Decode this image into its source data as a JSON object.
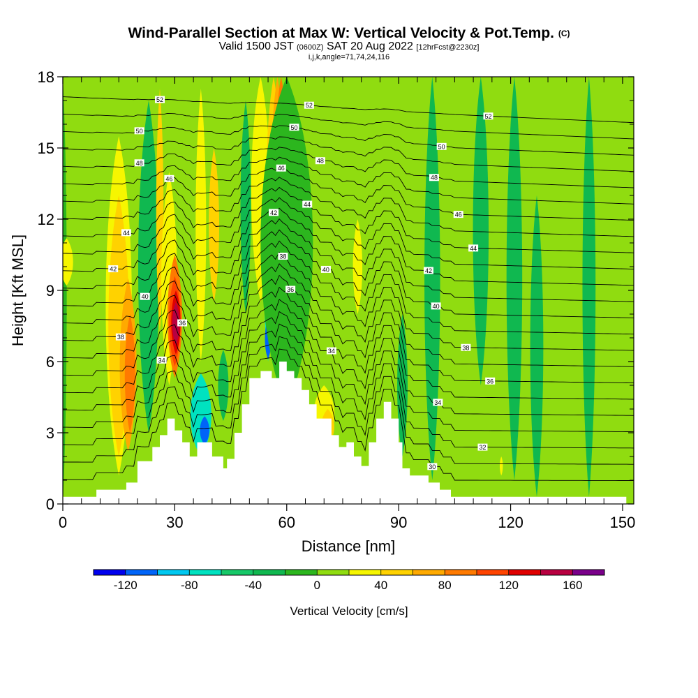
{
  "header": {
    "title": "Wind-Parallel Section at Max W: Vertical Velocity & Pot.Temp.",
    "title_mark": "(C)",
    "valid_prefix": "Valid 1500 JST",
    "valid_utc": "(0600Z)",
    "valid_date": "SAT 20 Aug 2022",
    "forecast_info": "[12hrFcst@2230z]",
    "params": "i,j,k,angle=71,74,24,116"
  },
  "chart_data": {
    "type": "heatmap",
    "title": "Wind-Parallel Section at Max W: Vertical Velocity & Pot.Temp.",
    "xlabel": "Distance [nm]",
    "ylabel": "Height [Kft MSL]",
    "xlim": [
      0,
      153
    ],
    "ylim": [
      0,
      18
    ],
    "x_ticks": [
      0,
      30,
      60,
      90,
      120,
      150
    ],
    "y_ticks": [
      0,
      3,
      6,
      9,
      12,
      15,
      18
    ],
    "colorbar": {
      "label": "Vertical Velocity [cm/s]",
      "boundaries": [
        -140,
        -120,
        -100,
        -80,
        -60,
        -40,
        -20,
        0,
        20,
        40,
        60,
        80,
        100,
        120,
        140,
        160,
        180
      ],
      "colors": [
        "#0000ee",
        "#0064f8",
        "#00c8f0",
        "#00e2c0",
        "#16c868",
        "#10b850",
        "#2cb61e",
        "#90dc10",
        "#f6f600",
        "#ffd200",
        "#ffaa00",
        "#ff7a00",
        "#ff4400",
        "#e00000",
        "#b80040",
        "#7a008a"
      ],
      "tick_labels": [
        -120,
        -80,
        -40,
        0,
        40,
        80,
        120,
        160
      ]
    },
    "vertical_velocity_columns": [
      {
        "x": 0,
        "w": 15,
        "bottom": 0,
        "top": 18,
        "level": 6
      },
      {
        "x": 1,
        "w": 25,
        "bottom": 9.2,
        "top": 11.2,
        "level": 8
      },
      {
        "x": 15,
        "w": 50,
        "bottom": 1.2,
        "top": 15.5,
        "level": 8
      },
      {
        "x": 15,
        "w": 40,
        "bottom": 2,
        "top": 13,
        "level": 9
      },
      {
        "x": 17.5,
        "w": 32,
        "bottom": 2.2,
        "top": 9.5,
        "level": 10
      },
      {
        "x": 18,
        "w": 20,
        "bottom": 3,
        "top": 8,
        "level": 11
      },
      {
        "x": 23,
        "w": 40,
        "bottom": 3,
        "top": 17,
        "level": 5
      },
      {
        "x": 26,
        "w": 14,
        "bottom": 7.2,
        "top": 17.5,
        "level": 9
      },
      {
        "x": 28.5,
        "w": 30,
        "bottom": 5,
        "top": 14,
        "level": 8
      },
      {
        "x": 30,
        "w": 28,
        "bottom": 5.3,
        "top": 10.5,
        "level": 11
      },
      {
        "x": 30,
        "w": 22,
        "bottom": 5.8,
        "top": 9.6,
        "level": 12
      },
      {
        "x": 30.3,
        "w": 18,
        "bottom": 6.3,
        "top": 9.0,
        "level": 13
      },
      {
        "x": 30.3,
        "w": 14,
        "bottom": 6.7,
        "top": 8.5,
        "level": 14
      },
      {
        "x": 37,
        "w": 20,
        "bottom": 6,
        "top": 17.5,
        "level": 8
      },
      {
        "x": 37,
        "w": 40,
        "bottom": 2,
        "top": 5.5,
        "level": 3
      },
      {
        "x": 38,
        "w": 18,
        "bottom": 2.5,
        "top": 3.7,
        "level": 1
      },
      {
        "x": 40.5,
        "w": 20,
        "bottom": 8.5,
        "top": 15,
        "level": 9
      },
      {
        "x": 43,
        "w": 20,
        "bottom": 3.5,
        "top": 6.5,
        "level": 5
      },
      {
        "x": 49,
        "w": 20,
        "bottom": 8,
        "top": 17,
        "level": 5
      },
      {
        "x": 53,
        "w": 36,
        "bottom": 8.5,
        "top": 18,
        "level": 8
      },
      {
        "x": 55,
        "w": 18,
        "bottom": 6,
        "top": 15,
        "level": 3
      },
      {
        "x": 55,
        "w": 12,
        "bottom": 6.1,
        "top": 7.8,
        "level": 1
      },
      {
        "x": 56.5,
        "w": 28,
        "bottom": 9,
        "top": 18,
        "level": 9
      },
      {
        "x": 57.5,
        "w": 22,
        "bottom": 10.5,
        "top": 18,
        "level": 10
      },
      {
        "x": 58.5,
        "w": 16,
        "bottom": 13.5,
        "top": 18,
        "level": 11
      },
      {
        "x": 60,
        "w": 100,
        "bottom": 4,
        "top": 18,
        "level": 6
      },
      {
        "x": 70,
        "w": 40,
        "bottom": 2.5,
        "top": 5,
        "level": 8
      },
      {
        "x": 71,
        "w": 25,
        "bottom": 2.5,
        "top": 4,
        "level": 9
      },
      {
        "x": 79,
        "w": 18,
        "bottom": 8,
        "top": 12,
        "level": 8
      },
      {
        "x": 91,
        "w": 20,
        "bottom": 2,
        "top": 8,
        "level": 5
      },
      {
        "x": 91,
        "w": 20,
        "bottom": 10,
        "top": 18,
        "level": 7
      },
      {
        "x": 99,
        "w": 30,
        "bottom": 1,
        "top": 18,
        "level": 5
      },
      {
        "x": 112,
        "w": 30,
        "bottom": 5,
        "top": 18,
        "level": 5
      },
      {
        "x": 121,
        "w": 30,
        "bottom": 1,
        "top": 18,
        "level": 5
      },
      {
        "x": 127,
        "w": 25,
        "bottom": 0.3,
        "top": 13,
        "level": 5
      },
      {
        "x": 133,
        "w": 20,
        "bottom": 10,
        "top": 17,
        "level": 7
      },
      {
        "x": 141,
        "w": 25,
        "bottom": 0.3,
        "top": 18,
        "level": 5
      },
      {
        "x": 117.5,
        "w": 6,
        "bottom": 1.2,
        "top": 2,
        "level": 8
      }
    ],
    "terrain": [
      [
        0,
        0.3
      ],
      [
        9,
        0.3
      ],
      [
        9,
        0.6
      ],
      [
        17,
        0.6
      ],
      [
        17,
        0.9
      ],
      [
        20,
        0.9
      ],
      [
        20,
        1.8
      ],
      [
        24,
        1.8
      ],
      [
        24,
        2.4
      ],
      [
        26,
        2.4
      ],
      [
        26,
        2.9
      ],
      [
        28,
        2.9
      ],
      [
        28,
        3.6
      ],
      [
        30,
        3.6
      ],
      [
        30,
        3.1
      ],
      [
        32,
        3.1
      ],
      [
        32,
        2.6
      ],
      [
        34,
        2.6
      ],
      [
        34,
        2.0
      ],
      [
        36,
        2.0
      ],
      [
        36,
        2.6
      ],
      [
        40,
        2.6
      ],
      [
        40,
        2.0
      ],
      [
        43,
        2.0
      ],
      [
        43,
        1.5
      ],
      [
        44,
        1.5
      ],
      [
        44,
        1.9
      ],
      [
        46,
        1.9
      ],
      [
        46,
        3.0
      ],
      [
        48,
        3.0
      ],
      [
        48,
        4.2
      ],
      [
        50,
        4.2
      ],
      [
        50,
        5.3
      ],
      [
        53,
        5.3
      ],
      [
        53,
        5.6
      ],
      [
        56,
        5.6
      ],
      [
        56,
        5.3
      ],
      [
        58,
        5.3
      ],
      [
        58,
        6.0
      ],
      [
        60,
        6.0
      ],
      [
        60,
        5.6
      ],
      [
        62,
        5.6
      ],
      [
        62,
        5.3
      ],
      [
        64,
        5.3
      ],
      [
        64,
        4.8
      ],
      [
        66,
        4.8
      ],
      [
        66,
        4.2
      ],
      [
        68,
        4.2
      ],
      [
        68,
        3.6
      ],
      [
        72,
        3.6
      ],
      [
        72,
        2.9
      ],
      [
        74,
        2.9
      ],
      [
        74,
        2.4
      ],
      [
        76,
        2.4
      ],
      [
        76,
        2.6
      ],
      [
        78,
        2.6
      ],
      [
        78,
        2.0
      ],
      [
        80,
        2.0
      ],
      [
        80,
        1.6
      ],
      [
        82,
        1.6
      ],
      [
        82,
        2.6
      ],
      [
        84,
        2.6
      ],
      [
        84,
        3.6
      ],
      [
        86,
        3.6
      ],
      [
        86,
        4.3
      ],
      [
        88,
        4.3
      ],
      [
        88,
        3.6
      ],
      [
        90,
        3.6
      ],
      [
        90,
        2.6
      ],
      [
        91,
        2.6
      ],
      [
        91,
        1.5
      ],
      [
        93,
        1.5
      ],
      [
        93,
        1.2
      ],
      [
        98,
        1.2
      ],
      [
        98,
        0.9
      ],
      [
        101,
        0.9
      ],
      [
        101,
        0.6
      ],
      [
        104,
        0.6
      ],
      [
        104,
        0.3
      ],
      [
        151,
        0.3
      ],
      [
        151,
        0
      ],
      [
        0,
        0
      ]
    ],
    "theta_contours": {
      "top": 52.6,
      "base_left": [
        29,
        29.5,
        30,
        30.5,
        31,
        31.5,
        32,
        32.5,
        33
      ],
      "labels": [
        {
          "text": "52",
          "x": 26,
          "lvl": 52
        },
        {
          "text": "50",
          "x": 20.5,
          "lvl": 50
        },
        {
          "text": "48",
          "x": 20.5,
          "lvl": 48
        },
        {
          "text": "46",
          "x": 28.5,
          "lvl": 46
        },
        {
          "text": "44",
          "x": 17,
          "lvl": 44
        },
        {
          "text": "42",
          "x": 13.5,
          "lvl": 42
        },
        {
          "text": "40",
          "x": 22,
          "lvl": 40
        },
        {
          "text": "38",
          "x": 15.5,
          "lvl": 38
        },
        {
          "text": "36",
          "x": 32,
          "lvl": 36
        },
        {
          "text": "34",
          "x": 26.5,
          "lvl": 34
        },
        {
          "text": "52",
          "x": 66,
          "lvl": 52
        },
        {
          "text": "50",
          "x": 62,
          "lvl": 50
        },
        {
          "text": "48",
          "x": 69,
          "lvl": 48
        },
        {
          "text": "46",
          "x": 58.5,
          "lvl": 46
        },
        {
          "text": "44",
          "x": 65.5,
          "lvl": 44
        },
        {
          "text": "42",
          "x": 56.5,
          "lvl": 42
        },
        {
          "text": "40",
          "x": 70.5,
          "lvl": 40
        },
        {
          "text": "38",
          "x": 59,
          "lvl": 38
        },
        {
          "text": "36",
          "x": 61,
          "lvl": 36
        },
        {
          "text": "34",
          "x": 72,
          "lvl": 34
        },
        {
          "text": "52",
          "x": 114,
          "lvl": 52
        },
        {
          "text": "50",
          "x": 101.5,
          "lvl": 50
        },
        {
          "text": "48",
          "x": 99.5,
          "lvl": 48
        },
        {
          "text": "46",
          "x": 106,
          "lvl": 46
        },
        {
          "text": "44",
          "x": 110,
          "lvl": 44
        },
        {
          "text": "42",
          "x": 98,
          "lvl": 42
        },
        {
          "text": "40",
          "x": 100,
          "lvl": 40
        },
        {
          "text": "38",
          "x": 108,
          "lvl": 38
        },
        {
          "text": "36",
          "x": 114.5,
          "lvl": 36
        },
        {
          "text": "34",
          "x": 100.5,
          "lvl": 34
        },
        {
          "text": "32",
          "x": 112.5,
          "lvl": 32
        },
        {
          "text": "30",
          "x": 99,
          "lvl": 30
        }
      ]
    }
  }
}
